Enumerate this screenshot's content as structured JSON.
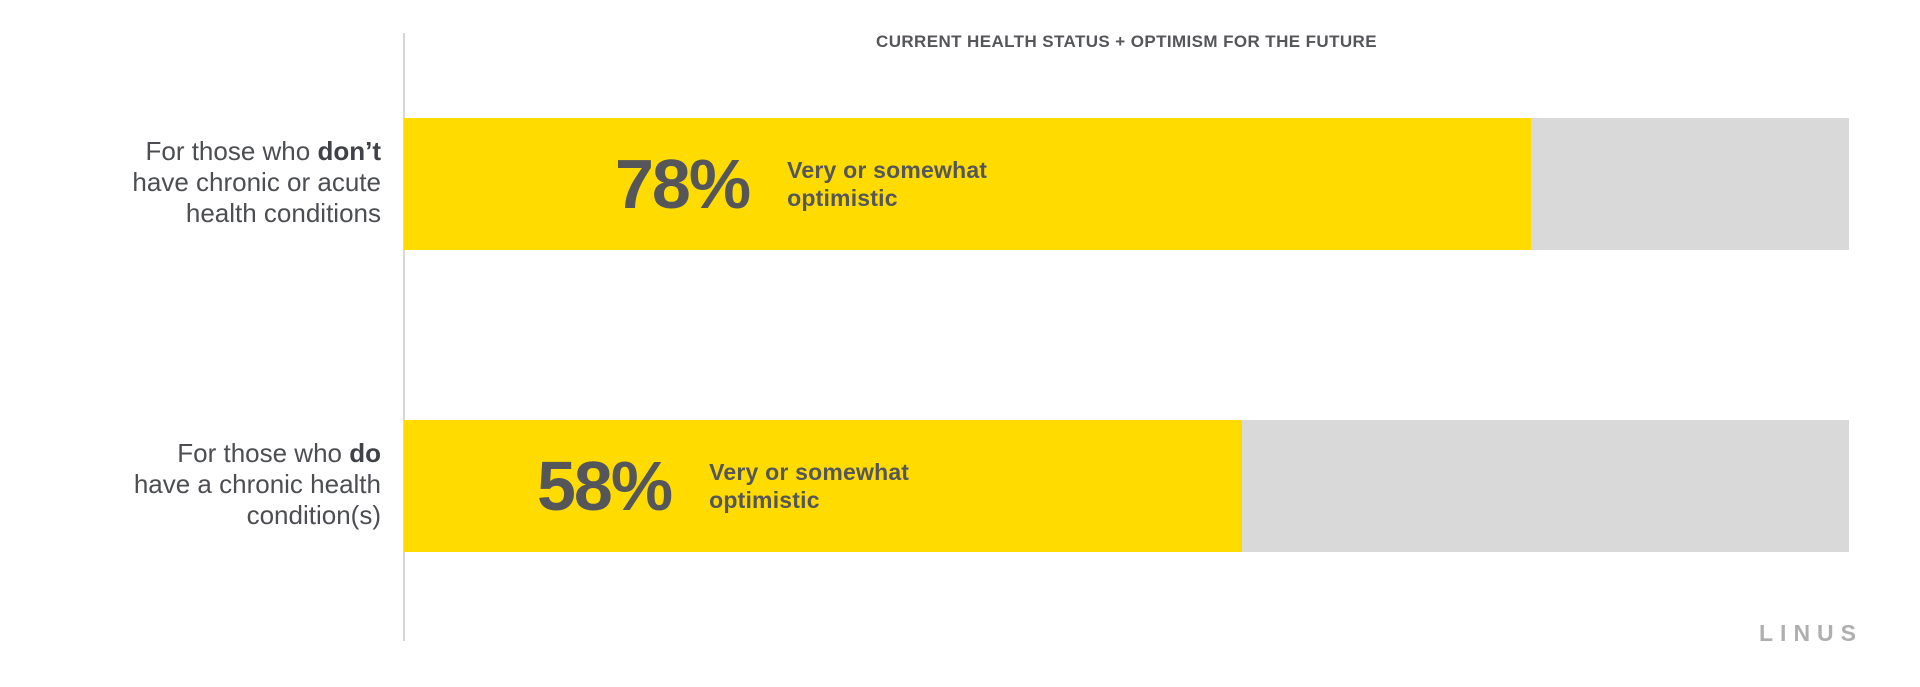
{
  "title": "CURRENT HEALTH STATUS + OPTIMISM FOR THE FUTURE",
  "brand": "LINUS",
  "chart_data": {
    "type": "bar",
    "orientation": "horizontal",
    "title": "CURRENT HEALTH STATUS + OPTIMISM FOR THE FUTURE",
    "categories": [
      "For those who don’t have chronic or acute health conditions",
      "For those who do have a chronic health condition(s)"
    ],
    "values": [
      78,
      58
    ],
    "value_suffix": "%",
    "series_label": "Very or somewhat optimistic",
    "xlim": [
      0,
      100
    ],
    "grid": false,
    "legend": "none",
    "bar_color": "#FFDB00",
    "track_color": "#D9D9D9",
    "text_color": "#54565A"
  },
  "rows": [
    {
      "value": 78,
      "pct_label": "78%",
      "desc_line1": "Very or somewhat",
      "desc_line2": "optimistic",
      "label": {
        "line1_regular": "For those who ",
        "line1_bold": "don’t",
        "line2": "have chronic or acute",
        "line3": "health conditions"
      }
    },
    {
      "value": 58,
      "pct_label": "58%",
      "desc_line1": "Very or somewhat",
      "desc_line2": "optimistic",
      "label": {
        "line1_regular": "For those who ",
        "line1_bold": "do",
        "line2": "have a chronic health",
        "line3": "condition(s)"
      }
    }
  ]
}
